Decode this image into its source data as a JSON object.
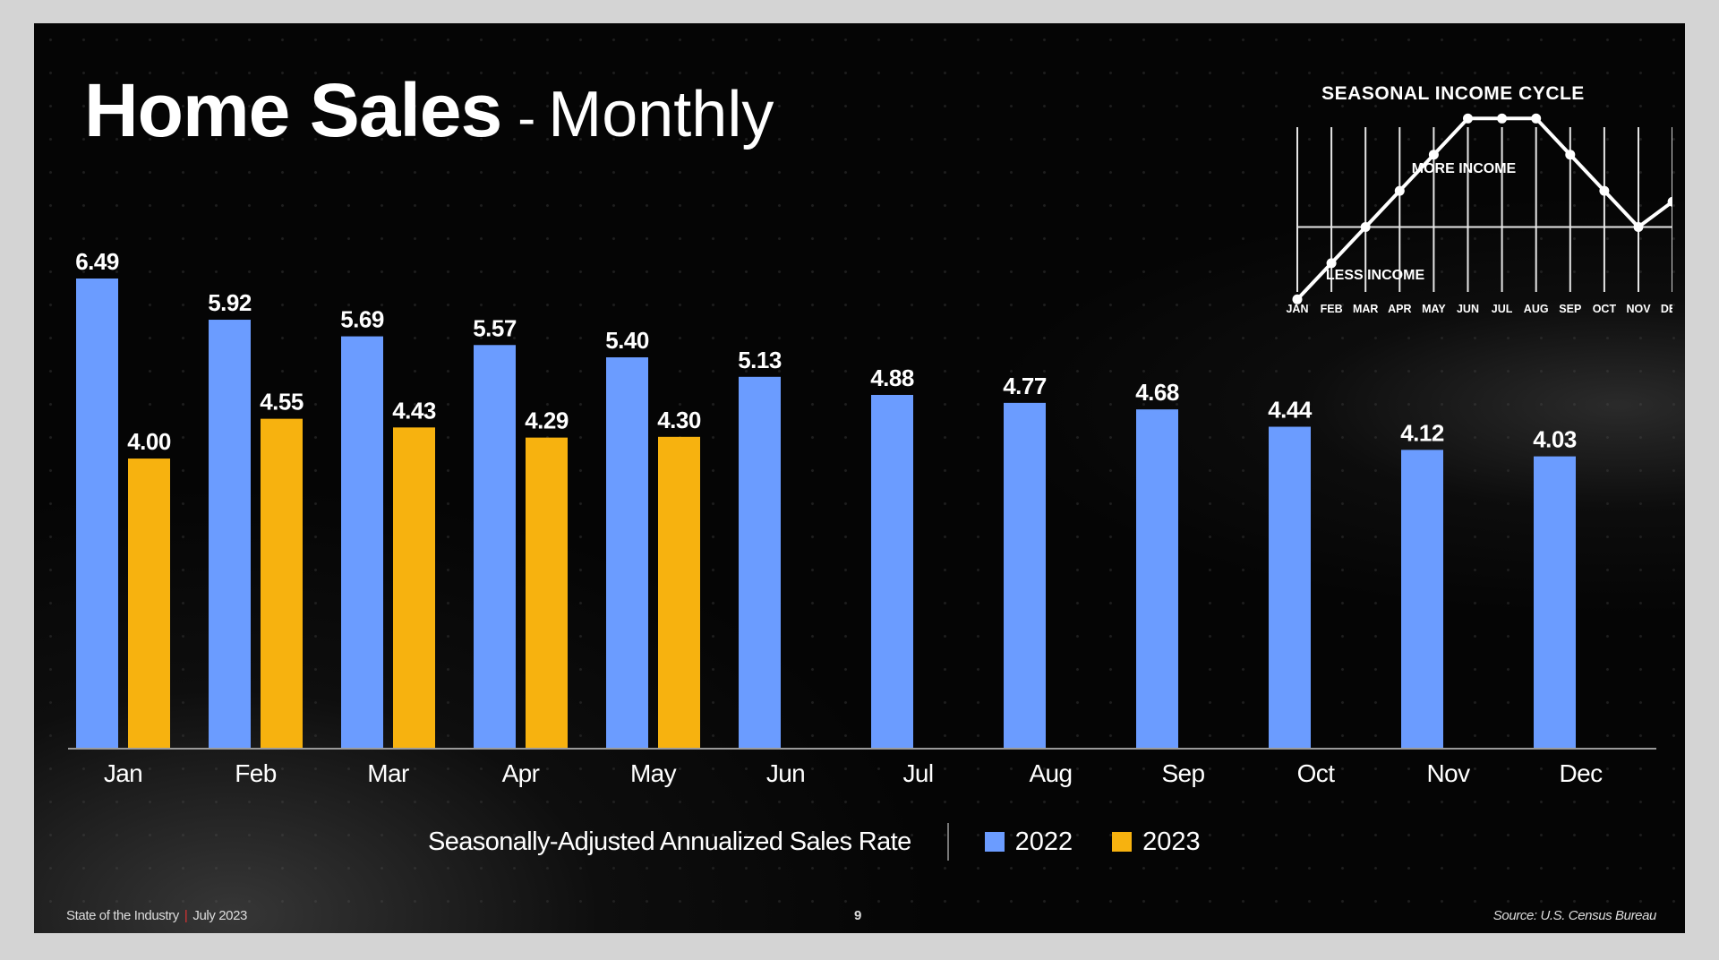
{
  "title": {
    "main": "Home Sales",
    "dash": "-",
    "sub": "Monthly"
  },
  "colors": {
    "series_2022": "#6b9cff",
    "series_2023": "#f7b20f",
    "background": "#050505",
    "frame": "#d4d4d4"
  },
  "chart_data": [
    {
      "type": "bar",
      "categories": [
        "Jan",
        "Feb",
        "Mar",
        "Apr",
        "May",
        "Jun",
        "Jul",
        "Aug",
        "Sep",
        "Oct",
        "Nov",
        "Dec"
      ],
      "series": [
        {
          "name": "2022",
          "values": [
            6.49,
            5.92,
            5.69,
            5.57,
            5.4,
            5.13,
            4.88,
            4.77,
            4.68,
            4.44,
            4.12,
            4.03
          ],
          "labels": [
            "6.49",
            "5.92",
            "5.69",
            "5.57",
            "5.40",
            "5.13",
            "4.88",
            "4.77",
            "4.68",
            "4.44",
            "4.12",
            "4.03"
          ]
        },
        {
          "name": "2023",
          "values": [
            4.0,
            4.55,
            4.43,
            4.29,
            4.3,
            null,
            null,
            null,
            null,
            null,
            null,
            null
          ],
          "labels": [
            "4.00",
            "4.55",
            "4.43",
            "4.29",
            "4.30"
          ]
        }
      ],
      "ylim": [
        0,
        7
      ],
      "grid": false,
      "legend_title": "Seasonally-Adjusted Annualized Sales Rate",
      "legend_position": "bottom"
    },
    {
      "type": "line",
      "title": "SEASONAL INCOME CYCLE",
      "categories": [
        "JAN",
        "FEB",
        "MAR",
        "APR",
        "MAY",
        "JUN",
        "JUL",
        "AUG",
        "SEP",
        "OCT",
        "NOV",
        "DEC"
      ],
      "values": [
        -4,
        -2,
        0,
        2,
        4,
        6,
        6,
        6,
        4,
        2,
        0,
        1.4
      ],
      "annotations": [
        "MORE INCOME",
        "LESS INCOME"
      ],
      "grid": true
    }
  ],
  "footer": {
    "left_main": "State of the Industry",
    "left_sep": "|",
    "left_date": "July 2023",
    "page": "9",
    "source": "Source: U.S. Census Bureau"
  }
}
